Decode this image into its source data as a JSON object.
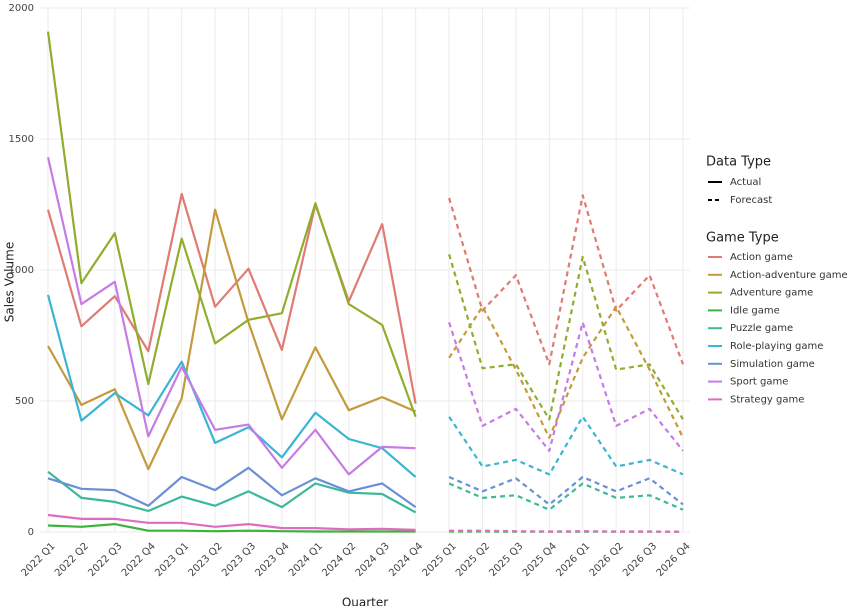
{
  "chart_data": {
    "type": "line",
    "x_label": "Quarter",
    "y_label": "Sales Volume",
    "categories": [
      "2022 Q1",
      "2022 Q2",
      "2022 Q3",
      "2022 Q4",
      "2023 Q1",
      "2023 Q2",
      "2023 Q3",
      "2023 Q4",
      "2024 Q1",
      "2024 Q2",
      "2024 Q3",
      "2024 Q4",
      "2025 Q1",
      "2025 Q2",
      "2025 Q3",
      "2025 Q4",
      "2026 Q1",
      "2026 Q2",
      "2026 Q3",
      "2026 Q4"
    ],
    "ylim": [
      0,
      2000
    ],
    "yticks": [
      0,
      500,
      1000,
      1500,
      2000
    ],
    "grid": true,
    "legend_position": "right",
    "data_type_legend": {
      "title": "Data Type",
      "actual": "Actual",
      "forecast": "Forecast"
    },
    "game_type_legend_title": "Game Type",
    "series": [
      {
        "name": "Action game",
        "color": "#e07b73",
        "values": [
          1230,
          785,
          900,
          690,
          1290,
          860,
          1005,
          695,
          1250,
          880,
          1175,
          490,
          null,
          null,
          null,
          null,
          null,
          null,
          null,
          null
        ],
        "forecast": [
          null,
          null,
          null,
          null,
          null,
          null,
          null,
          null,
          null,
          null,
          null,
          null,
          1275,
          845,
          980,
          640,
          1285,
          845,
          980,
          640
        ]
      },
      {
        "name": "Action-adventure game",
        "color": "#c49a3c",
        "values": [
          710,
          485,
          545,
          240,
          510,
          1230,
          800,
          430,
          705,
          465,
          515,
          460,
          null,
          null,
          null,
          null,
          null,
          null,
          null,
          null
        ],
        "forecast": [
          null,
          null,
          null,
          null,
          null,
          null,
          null,
          null,
          null,
          null,
          null,
          null,
          665,
          860,
          620,
          360,
          665,
          860,
          620,
          360
        ]
      },
      {
        "name": "Adventure game",
        "color": "#8fae2e",
        "values": [
          1910,
          950,
          1140,
          565,
          1120,
          720,
          810,
          835,
          1255,
          870,
          790,
          440,
          null,
          null,
          null,
          null,
          null,
          null,
          null,
          null
        ],
        "forecast": [
          null,
          null,
          null,
          null,
          null,
          null,
          null,
          null,
          null,
          null,
          null,
          null,
          1060,
          625,
          640,
          430,
          1050,
          620,
          640,
          430
        ]
      },
      {
        "name": "Idle game",
        "color": "#3cb33c",
        "values": [
          25,
          20,
          30,
          5,
          5,
          3,
          5,
          3,
          2,
          2,
          2,
          2,
          null,
          null,
          null,
          null,
          null,
          null,
          null,
          null
        ],
        "forecast": [
          null,
          null,
          null,
          null,
          null,
          null,
          null,
          null,
          null,
          null,
          null,
          null,
          2,
          2,
          1,
          1,
          1,
          1,
          1,
          1
        ]
      },
      {
        "name": "Puzzle game",
        "color": "#3cb89a",
        "values": [
          230,
          130,
          115,
          80,
          135,
          100,
          155,
          95,
          185,
          150,
          145,
          75,
          null,
          null,
          null,
          null,
          null,
          null,
          null,
          null
        ],
        "forecast": [
          null,
          null,
          null,
          null,
          null,
          null,
          null,
          null,
          null,
          null,
          null,
          null,
          185,
          130,
          140,
          85,
          185,
          130,
          140,
          85
        ]
      },
      {
        "name": "Role-playing game",
        "color": "#3bb5d4",
        "values": [
          905,
          425,
          530,
          445,
          650,
          340,
          400,
          285,
          455,
          355,
          320,
          210,
          null,
          null,
          null,
          null,
          null,
          null,
          null,
          null
        ],
        "forecast": [
          null,
          null,
          null,
          null,
          null,
          null,
          null,
          null,
          null,
          null,
          null,
          null,
          440,
          250,
          275,
          220,
          440,
          250,
          275,
          220
        ]
      },
      {
        "name": "Simulation game",
        "color": "#6a8fd6",
        "values": [
          205,
          165,
          160,
          100,
          210,
          160,
          245,
          140,
          205,
          155,
          185,
          95,
          null,
          null,
          null,
          null,
          null,
          null,
          null,
          null
        ],
        "forecast": [
          null,
          null,
          null,
          null,
          null,
          null,
          null,
          null,
          null,
          null,
          null,
          null,
          210,
          155,
          205,
          105,
          210,
          155,
          205,
          105
        ]
      },
      {
        "name": "Sport game",
        "color": "#c77be6",
        "values": [
          1430,
          870,
          955,
          365,
          630,
          390,
          410,
          245,
          390,
          220,
          325,
          320,
          null,
          null,
          null,
          null,
          null,
          null,
          null,
          null
        ],
        "forecast": [
          null,
          null,
          null,
          null,
          null,
          null,
          null,
          null,
          null,
          null,
          null,
          null,
          800,
          405,
          470,
          310,
          800,
          405,
          470,
          310
        ]
      },
      {
        "name": "Strategy game",
        "color": "#e06cc0",
        "values": [
          65,
          50,
          50,
          35,
          35,
          20,
          30,
          15,
          15,
          10,
          12,
          8,
          null,
          null,
          null,
          null,
          null,
          null,
          null,
          null
        ],
        "forecast": [
          null,
          null,
          null,
          null,
          null,
          null,
          null,
          null,
          null,
          null,
          null,
          null,
          5,
          5,
          3,
          2,
          3,
          2,
          2,
          1
        ]
      }
    ]
  }
}
